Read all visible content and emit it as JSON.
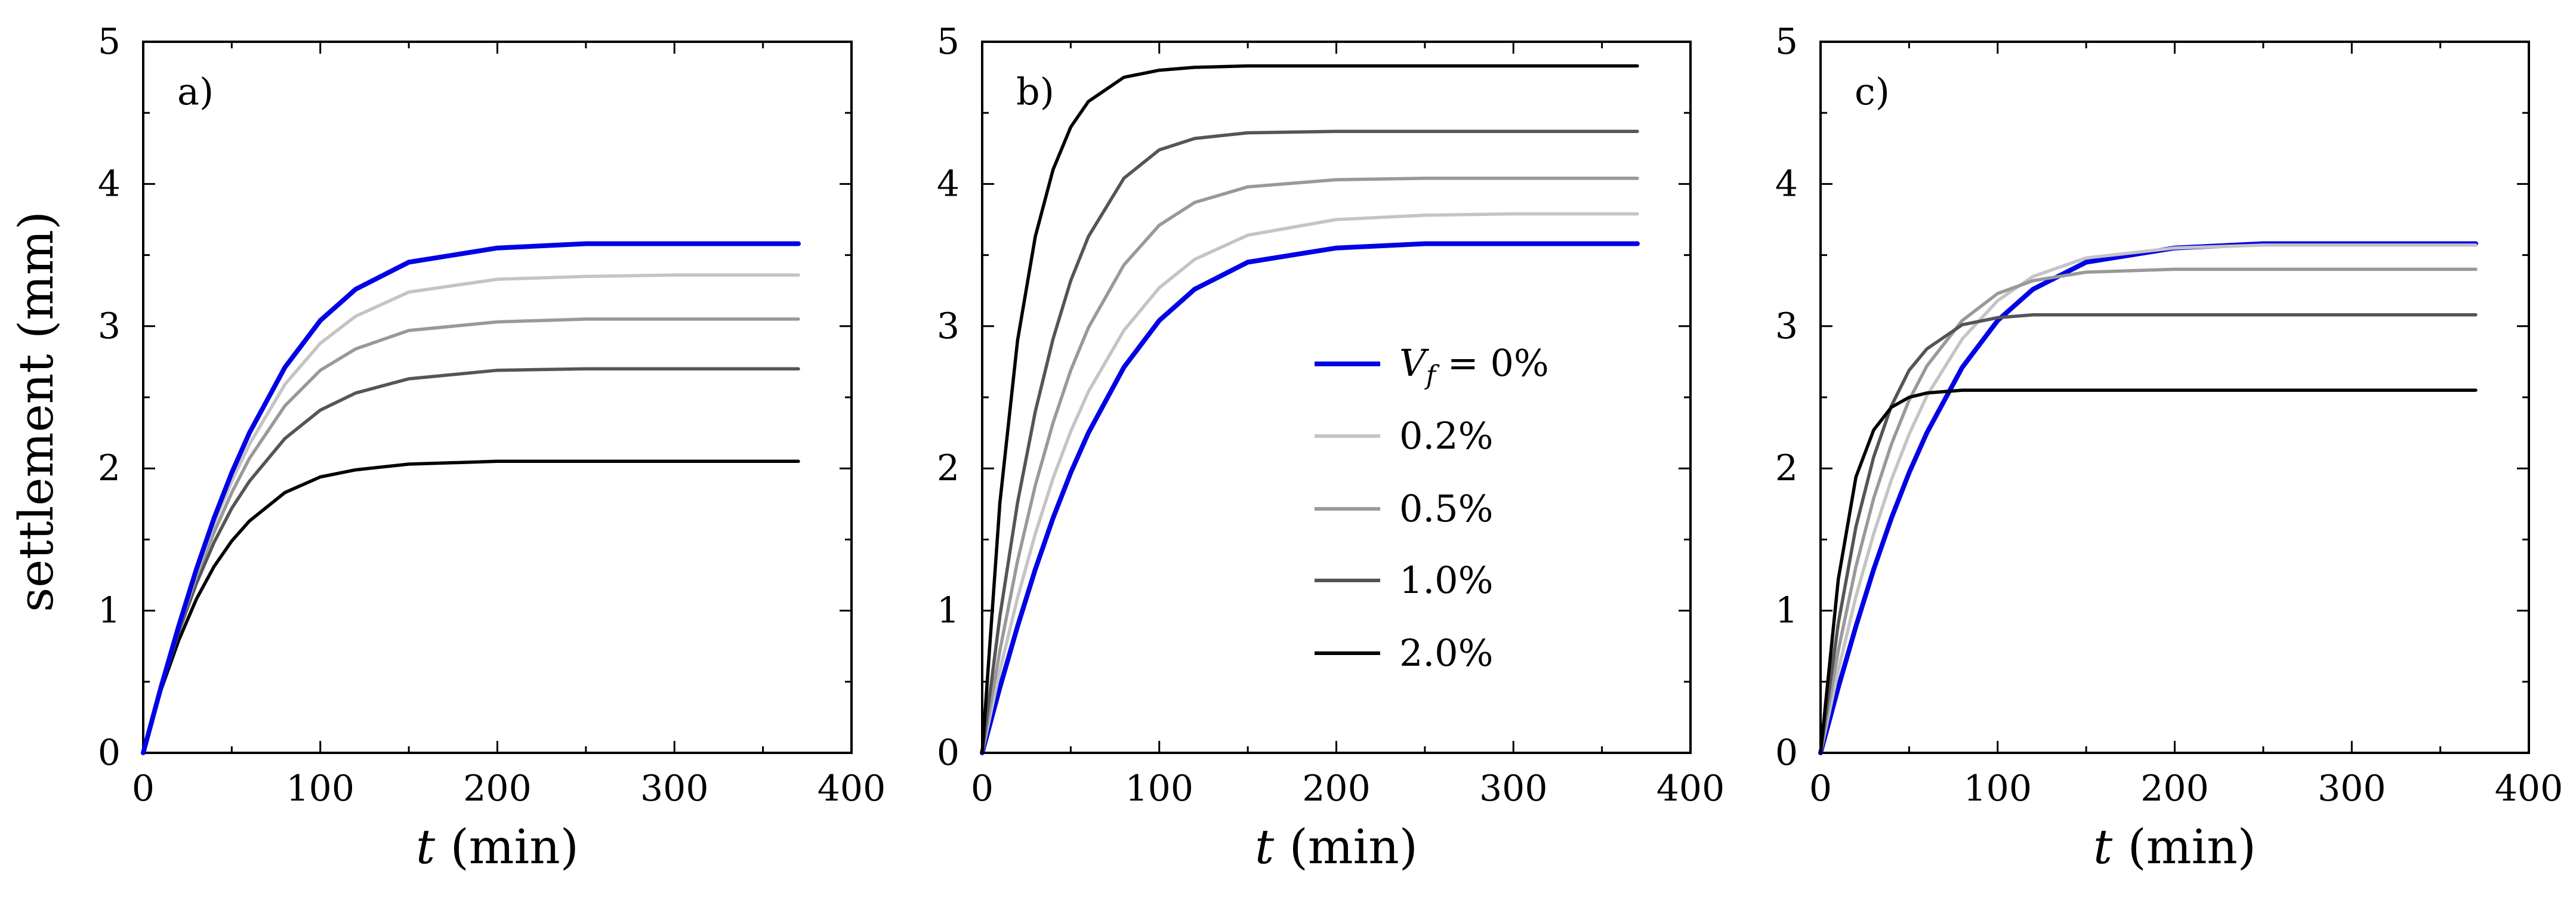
{
  "figure": {
    "ylabel": "settlement (mm)"
  },
  "legend": {
    "location": "panel b, lower-middle",
    "entries": [
      {
        "label_var": "V",
        "label_sub": "f",
        "label_rest": " = 0%",
        "color": "#0000e6"
      },
      {
        "label": "0.2%",
        "color": "#c4c4c4"
      },
      {
        "label": "0.5%",
        "color": "#999999"
      },
      {
        "label": "1.0%",
        "color": "#555555"
      },
      {
        "label": "2.0%",
        "color": "#000000"
      }
    ]
  },
  "chart_data": [
    {
      "type": "line",
      "panel": "a)",
      "xlabel_var": "t",
      "xlabel_unit": "(min)",
      "ylabel": "settlement (mm)",
      "xlim": [
        0,
        400
      ],
      "ylim": [
        0,
        5
      ],
      "xticks": [
        0,
        100,
        200,
        300,
        400
      ],
      "yticks": [
        0,
        1,
        2,
        3,
        4,
        5
      ],
      "x": [
        0,
        10,
        20,
        30,
        40,
        50,
        60,
        80,
        100,
        120,
        150,
        200,
        250,
        300,
        370
      ],
      "series": [
        {
          "name": "2.0%",
          "color": "#000000",
          "values": [
            0,
            0.44,
            0.79,
            1.08,
            1.31,
            1.49,
            1.63,
            1.83,
            1.94,
            1.99,
            2.03,
            2.05,
            2.05,
            2.05,
            2.05
          ]
        },
        {
          "name": "1.0%",
          "color": "#555555",
          "values": [
            0,
            0.45,
            0.85,
            1.19,
            1.48,
            1.72,
            1.91,
            2.21,
            2.41,
            2.53,
            2.63,
            2.69,
            2.7,
            2.7,
            2.7
          ]
        },
        {
          "name": "0.5%",
          "color": "#999999",
          "values": [
            0,
            0.45,
            0.87,
            1.24,
            1.55,
            1.83,
            2.07,
            2.44,
            2.69,
            2.84,
            2.97,
            3.03,
            3.05,
            3.05,
            3.05
          ]
        },
        {
          "name": "0.2%",
          "color": "#c4c4c4",
          "values": [
            0,
            0.46,
            0.88,
            1.26,
            1.61,
            1.91,
            2.17,
            2.59,
            2.88,
            3.07,
            3.24,
            3.33,
            3.35,
            3.36,
            3.36
          ]
        },
        {
          "name": "Vf = 0%",
          "color": "#0000e6",
          "values": [
            0,
            0.46,
            0.89,
            1.29,
            1.65,
            1.97,
            2.25,
            2.71,
            3.04,
            3.26,
            3.45,
            3.55,
            3.58,
            3.58,
            3.58
          ]
        }
      ]
    },
    {
      "type": "line",
      "panel": "b)",
      "xlabel_var": "t",
      "xlabel_unit": "(min)",
      "xlim": [
        0,
        400
      ],
      "ylim": [
        0,
        5
      ],
      "xticks": [
        0,
        100,
        200,
        300,
        400
      ],
      "yticks": [
        0,
        1,
        2,
        3,
        4,
        5
      ],
      "x": [
        0,
        10,
        20,
        30,
        40,
        50,
        60,
        80,
        100,
        120,
        150,
        200,
        250,
        300,
        370
      ],
      "series": [
        {
          "name": "Vf = 0%",
          "color": "#0000e6",
          "values": [
            0,
            0.46,
            0.89,
            1.29,
            1.65,
            1.97,
            2.25,
            2.71,
            3.04,
            3.26,
            3.45,
            3.55,
            3.58,
            3.58,
            3.58
          ]
        },
        {
          "name": "0.2%",
          "color": "#c4c4c4",
          "values": [
            0,
            0.58,
            1.09,
            1.54,
            1.93,
            2.26,
            2.54,
            2.97,
            3.27,
            3.47,
            3.64,
            3.75,
            3.78,
            3.79,
            3.79
          ]
        },
        {
          "name": "0.5%",
          "color": "#999999",
          "values": [
            0,
            0.72,
            1.35,
            1.88,
            2.32,
            2.69,
            2.99,
            3.43,
            3.71,
            3.87,
            3.98,
            4.03,
            4.04,
            4.04,
            4.04
          ]
        },
        {
          "name": "1.0%",
          "color": "#555555",
          "values": [
            0,
            0.96,
            1.76,
            2.4,
            2.91,
            3.32,
            3.63,
            4.04,
            4.24,
            4.32,
            4.36,
            4.37,
            4.37,
            4.37,
            4.37
          ]
        },
        {
          "name": "2.0%",
          "color": "#000000",
          "values": [
            0,
            1.76,
            2.9,
            3.63,
            4.1,
            4.4,
            4.58,
            4.75,
            4.8,
            4.82,
            4.83,
            4.83,
            4.83,
            4.83,
            4.83
          ]
        }
      ]
    },
    {
      "type": "line",
      "panel": "c)",
      "xlabel_var": "t",
      "xlabel_unit": "(min)",
      "xlim": [
        0,
        400
      ],
      "ylim": [
        0,
        5
      ],
      "xticks": [
        0,
        100,
        200,
        300,
        400
      ],
      "yticks": [
        0,
        1,
        2,
        3,
        4,
        5
      ],
      "x": [
        0,
        10,
        20,
        30,
        40,
        50,
        60,
        80,
        100,
        120,
        150,
        200,
        250,
        300,
        370
      ],
      "series": [
        {
          "name": "Vf = 0%",
          "color": "#0000e6",
          "values": [
            0,
            0.46,
            0.89,
            1.29,
            1.65,
            1.97,
            2.25,
            2.71,
            3.04,
            3.26,
            3.45,
            3.55,
            3.58,
            3.58,
            3.58
          ]
        },
        {
          "name": "0.2%",
          "color": "#c4c4c4",
          "values": [
            0,
            0.58,
            1.1,
            1.54,
            1.92,
            2.24,
            2.51,
            2.91,
            3.18,
            3.35,
            3.48,
            3.55,
            3.57,
            3.57,
            3.57
          ]
        },
        {
          "name": "0.5%",
          "color": "#999999",
          "values": [
            0,
            0.72,
            1.31,
            1.79,
            2.17,
            2.48,
            2.72,
            3.04,
            3.23,
            3.32,
            3.38,
            3.4,
            3.4,
            3.4,
            3.4
          ]
        },
        {
          "name": "1.0%",
          "color": "#555555",
          "values": [
            0,
            0.91,
            1.59,
            2.08,
            2.44,
            2.69,
            2.84,
            3.01,
            3.06,
            3.08,
            3.08,
            3.08,
            3.08,
            3.08,
            3.08
          ]
        },
        {
          "name": "2.0%",
          "color": "#000000",
          "values": [
            0,
            1.22,
            1.94,
            2.27,
            2.43,
            2.5,
            2.53,
            2.55,
            2.55,
            2.55,
            2.55,
            2.55,
            2.55,
            2.55,
            2.55
          ]
        }
      ]
    }
  ]
}
